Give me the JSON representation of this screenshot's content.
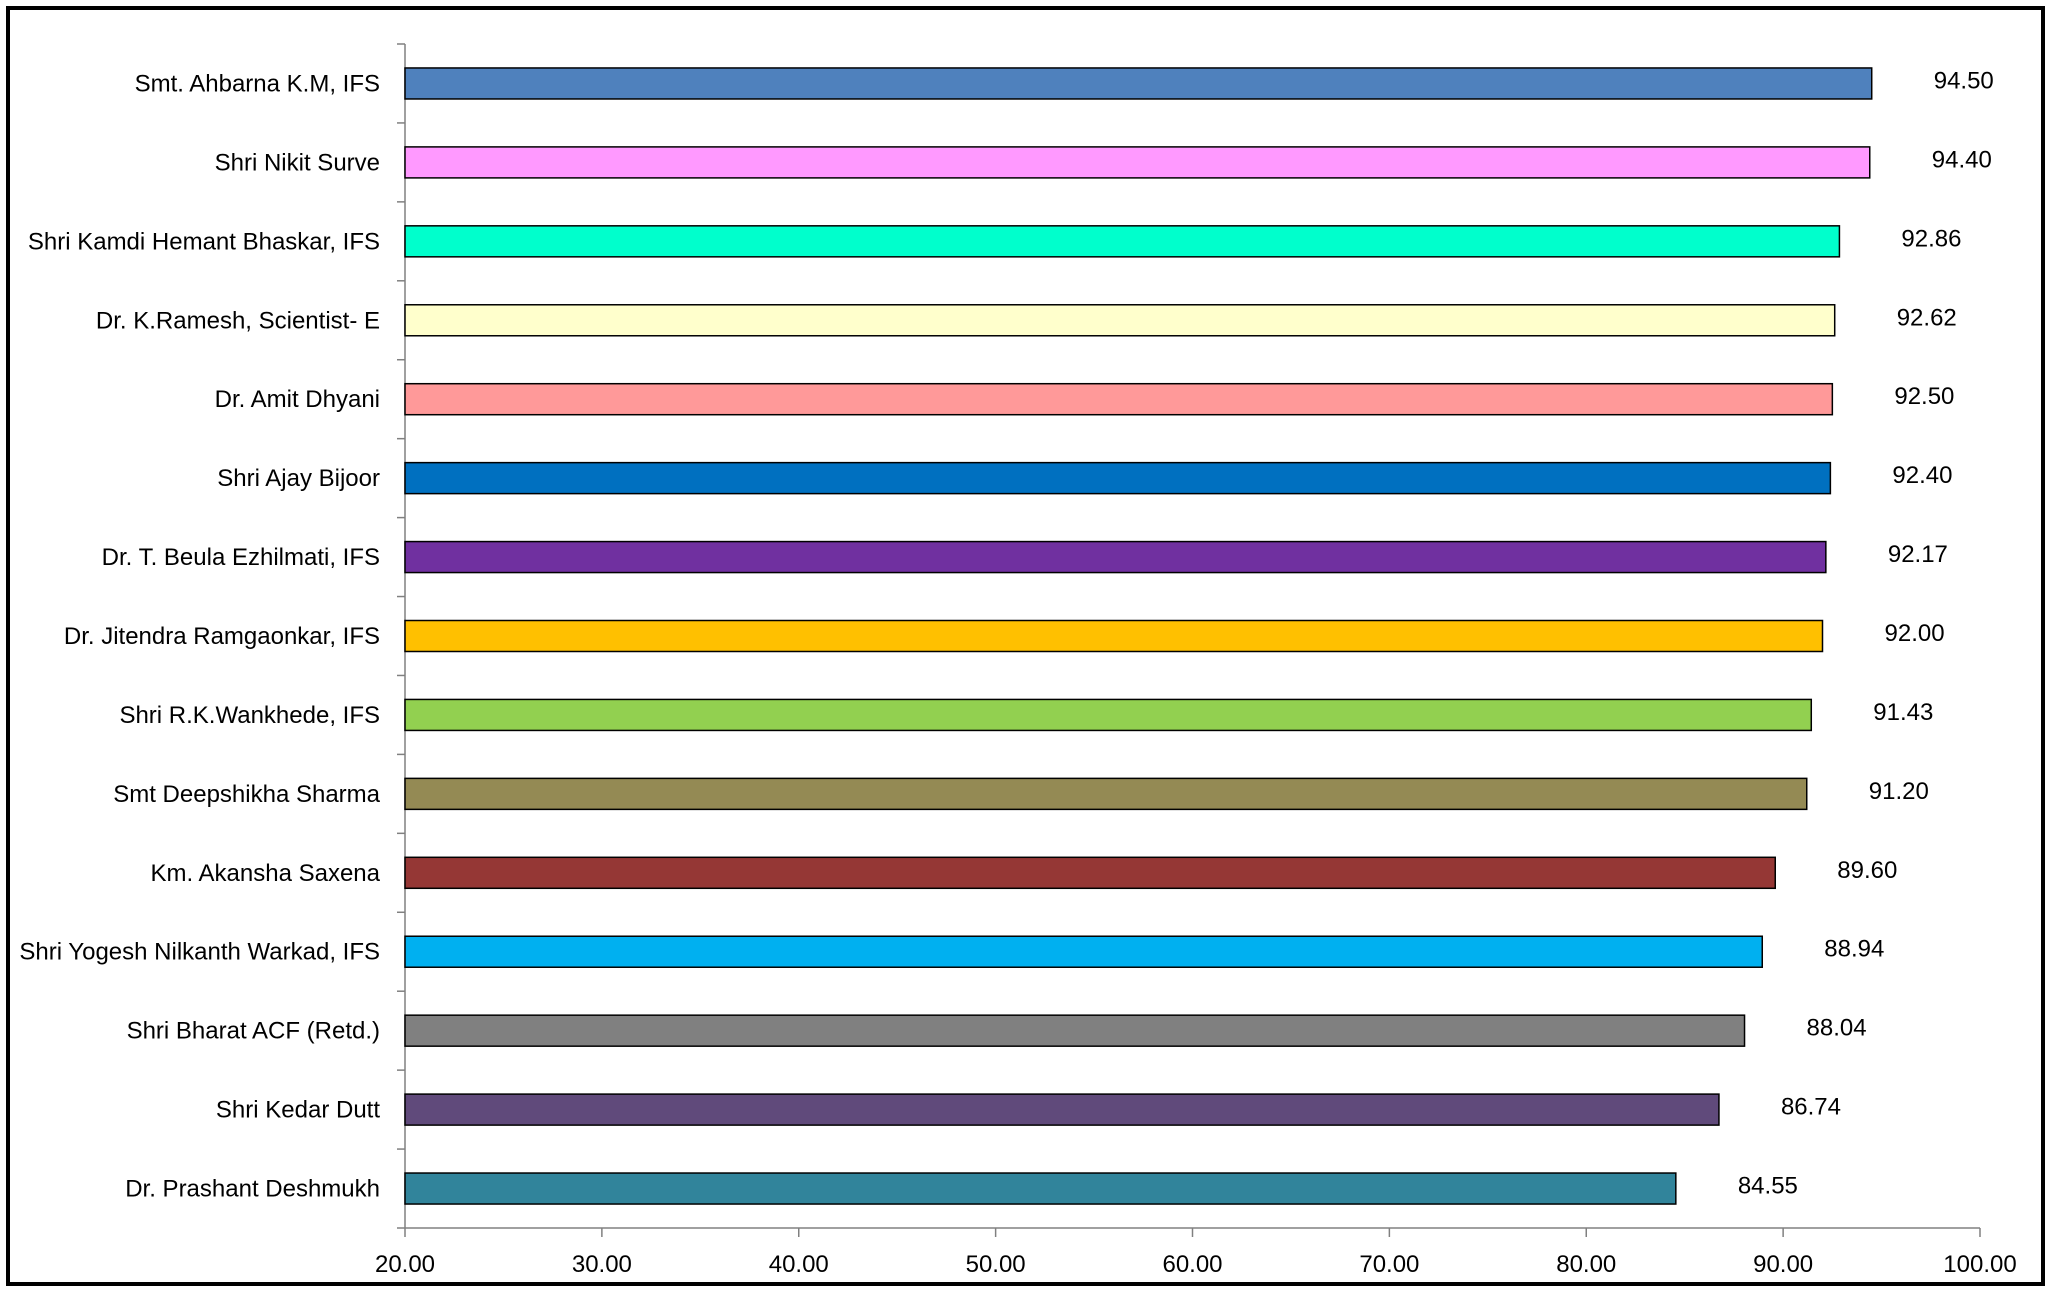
{
  "chart_data": {
    "type": "bar",
    "orientation": "horizontal",
    "title": "",
    "xlabel": "",
    "ylabel": "",
    "xlim": [
      20,
      100
    ],
    "x_ticks": [
      "20.00",
      "30.00",
      "40.00",
      "50.00",
      "60.00",
      "70.00",
      "80.00",
      "90.00",
      "100.00"
    ],
    "grid": false,
    "legend": "none",
    "categories": [
      "Smt. Ahbarna K.M, IFS",
      "Shri Nikit Surve",
      "Shri Kamdi Hemant Bhaskar, IFS",
      "Dr. K.Ramesh, Scientist- E",
      "Dr. Amit Dhyani",
      "Shri Ajay Bijoor",
      "Dr. T. Beula Ezhilmati, IFS",
      "Dr. Jitendra Ramgaonkar, IFS",
      "Shri R.K.Wankhede, IFS",
      "Smt Deepshikha Sharma",
      "Km. Akansha Saxena",
      "Shri Yogesh Nilkanth Warkad, IFS",
      "Shri Bharat ACF (Retd.)",
      "Shri Kedar Dutt",
      "Dr. Prashant Deshmukh"
    ],
    "values": [
      94.5,
      94.4,
      92.86,
      92.62,
      92.5,
      92.4,
      92.17,
      92.0,
      91.43,
      91.2,
      89.6,
      88.94,
      88.04,
      86.74,
      84.55
    ],
    "value_labels": [
      "94.50",
      "94.40",
      "92.86",
      "92.62",
      "92.50",
      "92.40",
      "92.17",
      "92.00",
      "91.43",
      "91.20",
      "89.60",
      "88.94",
      "88.04",
      "86.74",
      "84.55"
    ],
    "bar_colors": [
      "#4f81bd",
      "#ff99ff",
      "#00ffcc",
      "#ffffcc",
      "#ff9999",
      "#0070c0",
      "#7030a0",
      "#ffc000",
      "#92d050",
      "#948a54",
      "#953735",
      "#00b0f0",
      "#808080",
      "#604a7b",
      "#31849b"
    ]
  }
}
